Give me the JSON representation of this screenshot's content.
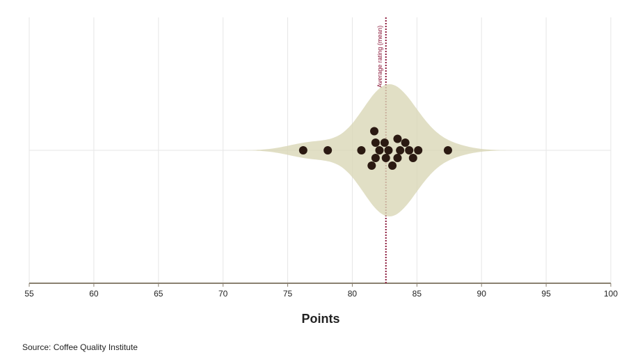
{
  "chart_data": {
    "type": "violin",
    "x_label": "Points",
    "source": "Source: Coffee Quality Institute",
    "values": [
      76.2,
      78.1,
      80.7,
      82.1,
      82.8,
      83.7,
      85.1,
      87.4,
      81.8,
      82.6,
      83.5,
      84.1,
      84.7,
      81.8,
      82.5,
      83.5,
      84.4,
      81.5,
      81.7,
      83.1
    ],
    "point_color": "#2b1a12",
    "violin_color": "#d9d7b6",
    "mean": 82.6,
    "mean_label": "Average rating (mean)",
    "mean_color": "#8a1538",
    "xlim": [
      55,
      100
    ],
    "xticks": [
      55,
      60,
      65,
      70,
      75,
      80,
      85,
      90,
      95,
      100
    ],
    "grid": true
  }
}
